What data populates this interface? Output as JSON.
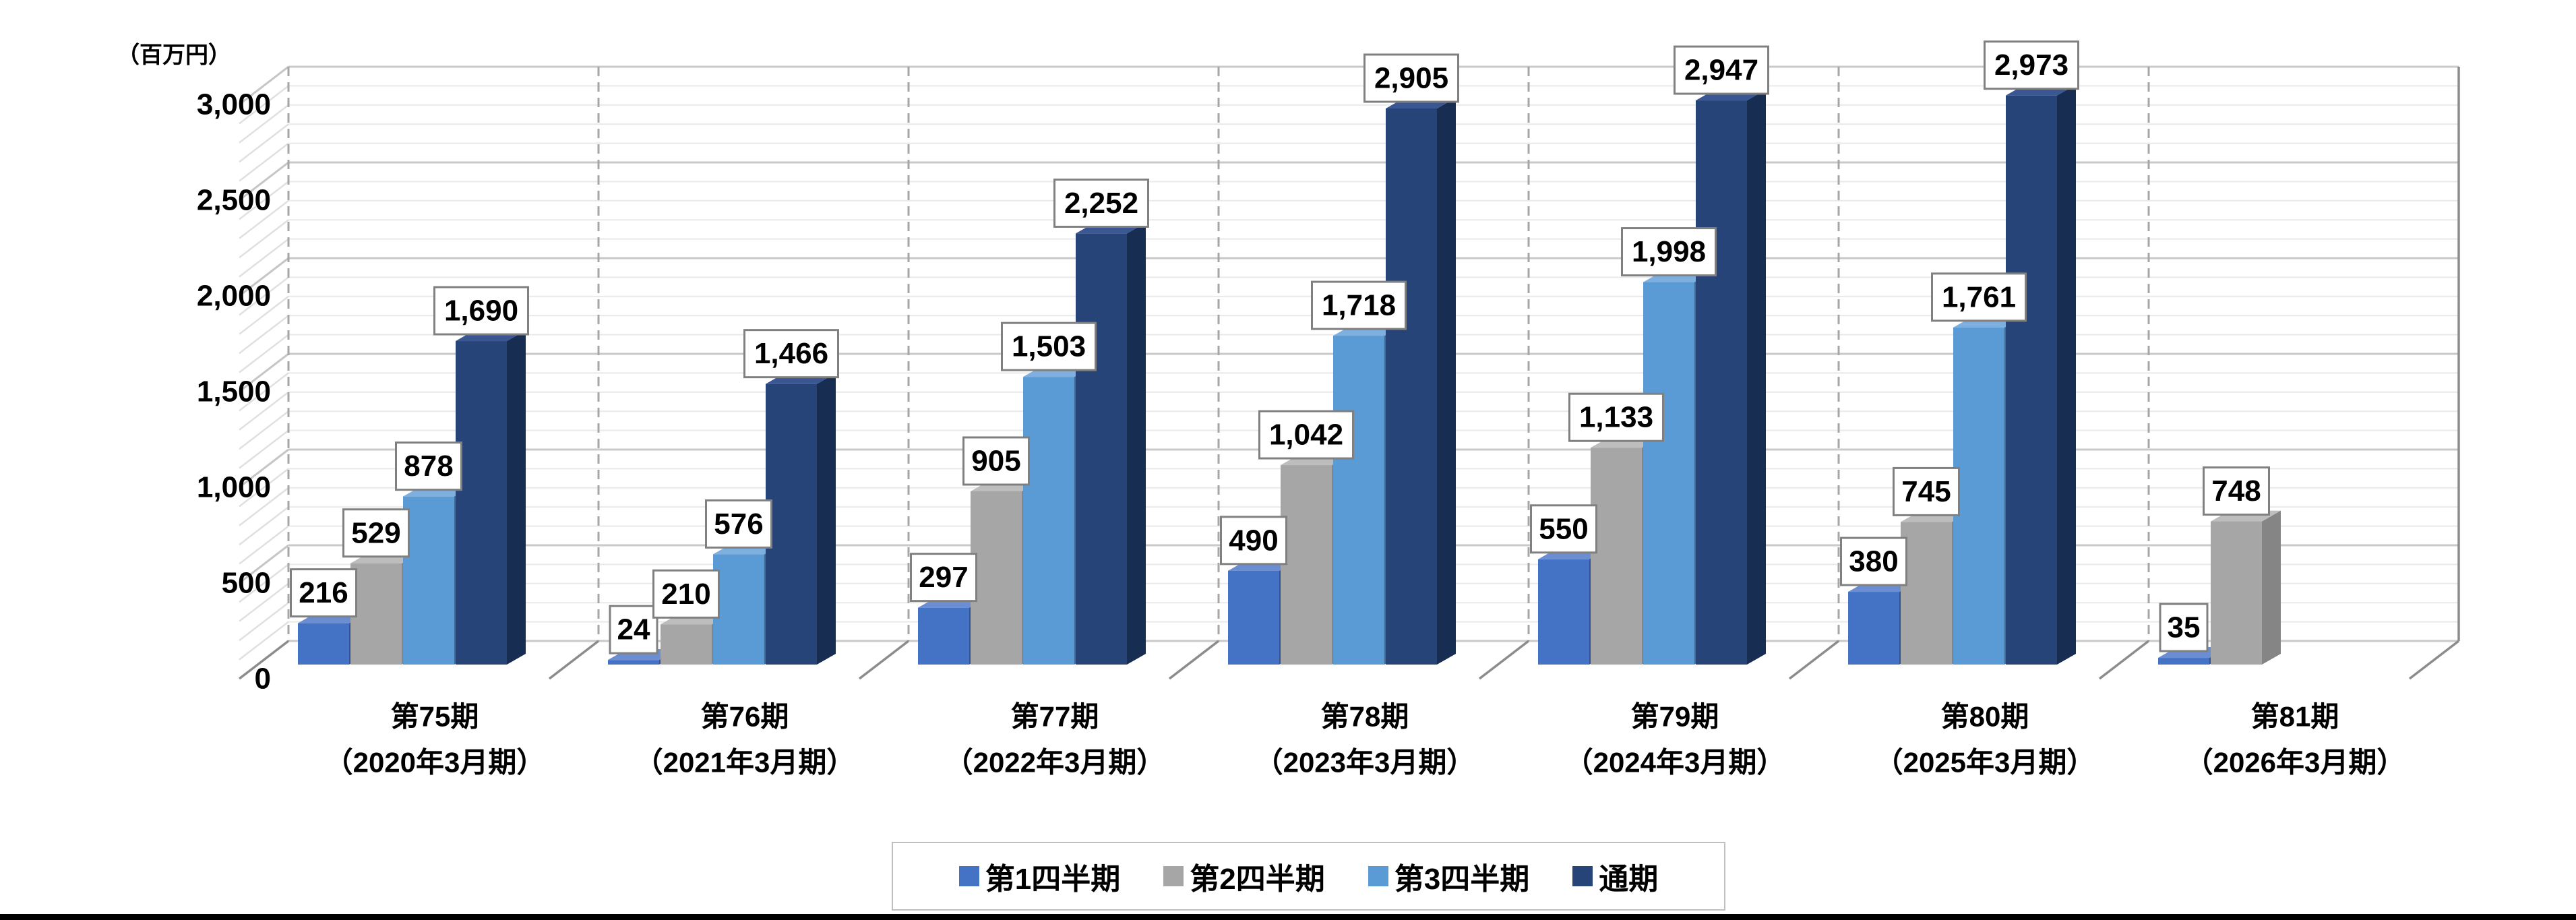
{
  "page": {
    "background": "#FFFFFF",
    "bottom_bar_color": "#000000"
  },
  "chart_data": {
    "type": "bar",
    "style": "3d-clustered-column",
    "title": "",
    "unit_label": "（百万円）",
    "y_axis": {
      "min": 0,
      "max": 3000,
      "major_step": 500,
      "minor_step": 100,
      "tick_labels": [
        "0",
        "500",
        "1,000",
        "1,500",
        "2,000",
        "2,500",
        "3,000"
      ]
    },
    "grid": {
      "major": true,
      "minor": true
    },
    "categories": [
      {
        "line1": "第75期",
        "line2": "（2020年3月期）"
      },
      {
        "line1": "第76期",
        "line2": "（2021年3月期）"
      },
      {
        "line1": "第77期",
        "line2": "（2022年3月期）"
      },
      {
        "line1": "第78期",
        "line2": "（2023年3月期）"
      },
      {
        "line1": "第79期",
        "line2": "（2024年3月期）"
      },
      {
        "line1": "第80期",
        "line2": "（2025年3月期）"
      },
      {
        "line1": "第81期",
        "line2": "（2026年3月期）"
      }
    ],
    "series": [
      {
        "key": "q1",
        "name": "第1四半期",
        "color": "#4472C4",
        "color_top": "#6A8ED1",
        "color_side": "#2F5396",
        "values": [
          216,
          24,
          297,
          490,
          550,
          380,
          35
        ],
        "labels": [
          "216",
          "24",
          "297",
          "490",
          "550",
          "380",
          "35"
        ]
      },
      {
        "key": "q2",
        "name": "第2四半期",
        "color": "#A6A6A6",
        "color_top": "#BDBDBD",
        "color_side": "#858585",
        "values": [
          529,
          210,
          905,
          1042,
          1133,
          745,
          748
        ],
        "labels": [
          "529",
          "210",
          "905",
          "1,042",
          "1,133",
          "745",
          "748"
        ]
      },
      {
        "key": "q3",
        "name": "第3四半期",
        "color": "#5B9BD5",
        "color_top": "#7EAFDE",
        "color_side": "#3E6D99",
        "values": [
          878,
          576,
          1503,
          1718,
          1998,
          1761,
          null
        ],
        "labels": [
          "878",
          "576",
          "1,503",
          "1,718",
          "1,998",
          "1,761",
          null
        ]
      },
      {
        "key": "fy",
        "name": "通期",
        "color": "#264478",
        "color_top": "#3A5793",
        "color_side": "#182D52",
        "values": [
          1690,
          1466,
          2252,
          2905,
          2947,
          2973,
          null
        ],
        "labels": [
          "1,690",
          "1,466",
          "2,252",
          "2,905",
          "2,947",
          "2,973",
          null
        ]
      }
    ],
    "legend": {
      "position": "bottom",
      "items": [
        "第1四半期",
        "第2四半期",
        "第3四半期",
        "通期"
      ]
    },
    "colors": {
      "gridline_minor": "#E9E9E9",
      "gridline_major": "#C9C9C9",
      "axis_line": "#A6A6A6",
      "floor_edge": "#8C8C8C",
      "hatch_minor": "#E0E0E0",
      "hatch_major": "#C6C6C6",
      "label_box_border": "#808080",
      "label_box_fill": "#FFFFFF",
      "text": "#000000"
    }
  }
}
